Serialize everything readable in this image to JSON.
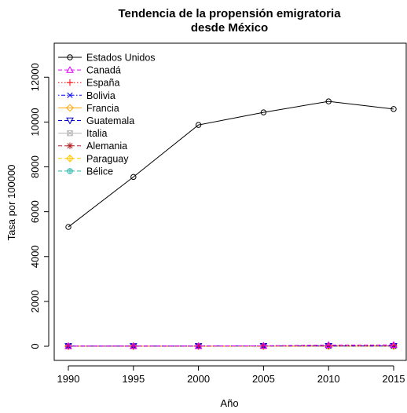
{
  "chart_data": {
    "type": "line",
    "title": "Tendencia de la propensión emigratoria",
    "subtitle": "desde México",
    "xlabel": "Año",
    "ylabel": "Tasa por 100000",
    "x": [
      1990,
      1995,
      2000,
      2005,
      2010,
      2015
    ],
    "x_ticks": [
      "1990",
      "1995",
      "2000",
      "2005",
      "2010",
      "2015"
    ],
    "y_ticks": [
      "0",
      "2000",
      "4000",
      "6000",
      "8000",
      "10000",
      "12000"
    ],
    "xlim": [
      1990,
      2015
    ],
    "ylim": [
      0,
      13000
    ],
    "grid": false,
    "legend_position": "top-left",
    "series": [
      {
        "name": "Estados Unidos",
        "color": "#000000",
        "marker": "circle",
        "dash": "solid",
        "values": [
          5320,
          7550,
          9870,
          10430,
          10920,
          10580
        ]
      },
      {
        "name": "Canadá",
        "color": "#DF00FF",
        "marker": "triangle-up",
        "dash": "dashed",
        "values": [
          8,
          10,
          12,
          20,
          55,
          60
        ]
      },
      {
        "name": "España",
        "color": "#FF0000",
        "marker": "plus",
        "dash": "dotted",
        "values": [
          3,
          4,
          8,
          20,
          25,
          40
        ]
      },
      {
        "name": "Bolivia",
        "color": "#0000FF",
        "marker": "x",
        "dash": "dotdash",
        "values": [
          10,
          10,
          11,
          12,
          12,
          12
        ]
      },
      {
        "name": "Francia",
        "color": "#FFA500",
        "marker": "diamond",
        "dash": "solid",
        "values": [
          3,
          4,
          5,
          6,
          7,
          8
        ]
      },
      {
        "name": "Guatemala",
        "color": "#0000C8",
        "marker": "triangle-down",
        "dash": "dashed",
        "values": [
          6,
          7,
          8,
          9,
          10,
          11
        ]
      },
      {
        "name": "Italia",
        "color": "#B4B4B4",
        "marker": "square-x",
        "dash": "solid",
        "values": [
          2,
          3,
          4,
          5,
          6,
          7
        ]
      },
      {
        "name": "Alemania",
        "color": "#B22222",
        "marker": "asterisk",
        "dash": "dashed",
        "values": [
          4,
          5,
          6,
          8,
          10,
          12
        ]
      },
      {
        "name": "Paraguay",
        "color": "#FFC800",
        "marker": "diamond-plus",
        "dash": "dashed",
        "values": [
          2,
          3,
          4,
          5,
          6,
          7
        ]
      },
      {
        "name": "Bélice",
        "color": "#20B2AA",
        "marker": "circle-plus",
        "dash": "dashed",
        "values": [
          2,
          3,
          3,
          4,
          4,
          5
        ]
      }
    ]
  }
}
